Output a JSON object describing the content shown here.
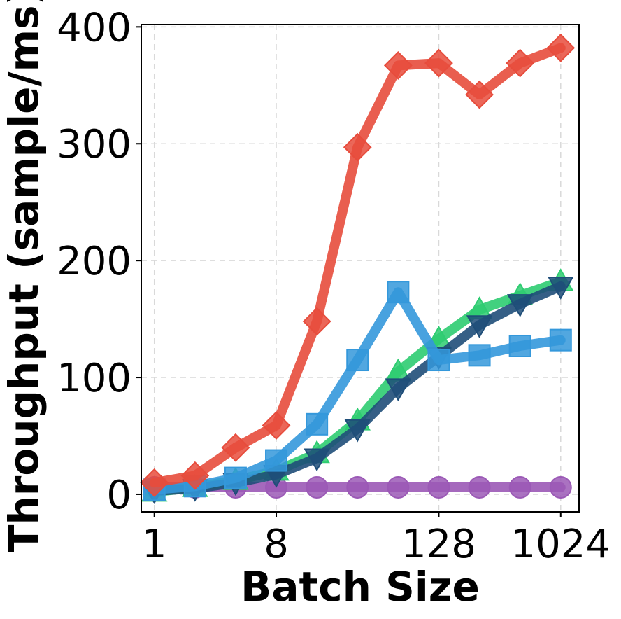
{
  "chart_data": {
    "type": "line",
    "title": "",
    "xlabel": "Batch Size",
    "ylabel": "Throughput (sample/ms)",
    "x_scale": "log2",
    "x": [
      1,
      2,
      4,
      8,
      16,
      32,
      64,
      128,
      256,
      512,
      1024
    ],
    "xticks": [
      1,
      8,
      128,
      1024
    ],
    "xtick_labels": [
      "1",
      "8",
      "128",
      "1024"
    ],
    "xlim": [
      0.8,
      1400
    ],
    "ylim": [
      -15,
      402
    ],
    "yticks": [
      0,
      100,
      200,
      300,
      400
    ],
    "ytick_labels": [
      "0",
      "100",
      "200",
      "300",
      "400"
    ],
    "grid": true,
    "legend": "none",
    "series": [
      {
        "color": "#9b59b6",
        "marker": "circle",
        "values": [
          6,
          6,
          6,
          6,
          6,
          6,
          6,
          6,
          6,
          6,
          6
        ]
      },
      {
        "color": "#2ecc71",
        "marker": "triangle-up",
        "values": [
          2,
          6,
          12,
          20,
          35,
          63,
          105,
          133,
          158,
          170,
          182
        ]
      },
      {
        "color": "#1f4e79",
        "marker": "triangle-down",
        "values": [
          3,
          5,
          10,
          17,
          31,
          56,
          91,
          118,
          145,
          163,
          178
        ]
      },
      {
        "color": "#3498db",
        "marker": "square",
        "values": [
          4,
          7,
          14,
          29,
          60,
          115,
          173,
          115,
          119,
          127,
          132
        ]
      },
      {
        "color": "#e74c3c",
        "marker": "diamond",
        "values": [
          10,
          16,
          40,
          59,
          148,
          297,
          367,
          369,
          342,
          369,
          382
        ]
      }
    ]
  }
}
